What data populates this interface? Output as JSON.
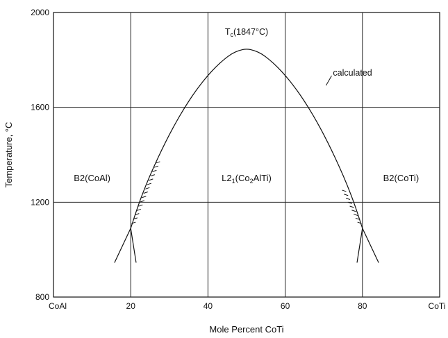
{
  "chart_data": {
    "type": "line",
    "xlabel": "Mole Percent CoTi",
    "ylabel": "Temperature, °C",
    "xlim": [
      0,
      100
    ],
    "ylim": [
      800,
      2000
    ],
    "grid": true,
    "x_ticks": [
      20,
      40,
      60,
      80
    ],
    "x_tick_labels": [
      "20",
      "40",
      "60",
      "80"
    ],
    "x_end_labels": {
      "left": "CoAl",
      "right": "CoTi"
    },
    "y_ticks": [
      800,
      1200,
      1600,
      2000
    ],
    "y_tick_labels": [
      "800",
      "1200",
      "1600",
      "2000"
    ],
    "series": [
      {
        "name": "calculated",
        "x": [
          20.0,
          22,
          24,
          26,
          28,
          30,
          32,
          34,
          36,
          38,
          40,
          42,
          44,
          46,
          48,
          50,
          52,
          54,
          56,
          58,
          60,
          62,
          64,
          66,
          68,
          70,
          72,
          74,
          76,
          78,
          80.0
        ],
        "y": [
          1090,
          1190,
          1275,
          1350,
          1420,
          1485,
          1545,
          1600,
          1650,
          1695,
          1735,
          1770,
          1800,
          1825,
          1840,
          1847,
          1840,
          1825,
          1800,
          1770,
          1735,
          1695,
          1650,
          1600,
          1545,
          1485,
          1420,
          1350,
          1275,
          1190,
          1090
        ]
      }
    ],
    "extension_lines": [
      {
        "x": [
          20.0,
          15.8
        ],
        "y": [
          1090,
          945
        ]
      },
      {
        "x": [
          20.0,
          21.4
        ],
        "y": [
          1090,
          945
        ]
      },
      {
        "x": [
          80.0,
          84.2
        ],
        "y": [
          1090,
          945
        ]
      },
      {
        "x": [
          80.0,
          78.6
        ],
        "y": [
          1090,
          945
        ]
      }
    ],
    "hatch_segments": [
      {
        "x": [
          20.2,
          26.5
        ],
        "y": [
          1110,
          1365
        ]
      },
      {
        "x": [
          79.8,
          75.8
        ],
        "y": [
          1110,
          1245
        ]
      }
    ],
    "annotations": [
      {
        "text": "Tc(1847°C)",
        "x": 50,
        "y": 1895
      },
      {
        "text": "calculated",
        "x": 71.3,
        "y": 1745
      },
      {
        "text": "B2(CoAl)",
        "x": 10,
        "y": 1300
      },
      {
        "text": "L21(Co2AlTi)",
        "x": 50,
        "y": 1300
      },
      {
        "text": "B2(CoTi)",
        "x": 90,
        "y": 1300
      }
    ],
    "region_labels": {
      "left": "B2(CoAl)",
      "center": "L2",
      "center_sub1": "1",
      "center_rest": "(Co",
      "center_sub2": "2",
      "center_tail": "AlTi)",
      "right": "B2(CoTi)"
    },
    "peak_label": {
      "main": "T",
      "sub": "c",
      "value": "(1847°C)"
    },
    "curve_label": "calculated"
  }
}
